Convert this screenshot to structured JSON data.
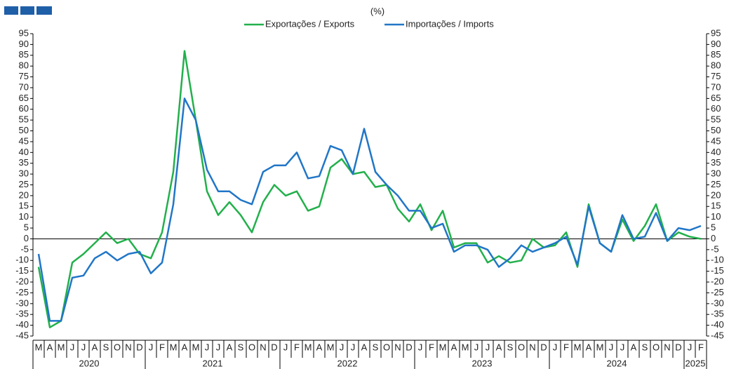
{
  "chart_data": {
    "type": "line",
    "subtitle": "(%)",
    "categories": [
      "M",
      "A",
      "M",
      "J",
      "J",
      "A",
      "S",
      "O",
      "N",
      "D",
      "J",
      "F",
      "M",
      "A",
      "M",
      "J",
      "J",
      "A",
      "S",
      "O",
      "N",
      "D",
      "J",
      "F",
      "M",
      "A",
      "M",
      "J",
      "J",
      "A",
      "S",
      "O",
      "N",
      "D",
      "J",
      "F",
      "M",
      "A",
      "M",
      "J",
      "J",
      "A",
      "S",
      "O",
      "N",
      "D",
      "J",
      "F",
      "M",
      "A",
      "M",
      "J",
      "J",
      "A",
      "S",
      "O",
      "N",
      "D",
      "J",
      "F"
    ],
    "year_labels": [
      "2020",
      "2021",
      "2022",
      "2023",
      "2024",
      "2025"
    ],
    "series": [
      {
        "name": "Exportações / Exports",
        "color": "#22b04b",
        "values": [
          -13,
          -41,
          -38,
          -11,
          -7,
          -2,
          3,
          -2,
          0,
          -7,
          -9,
          3,
          31,
          87,
          55,
          22,
          11,
          17,
          11,
          3,
          17,
          25,
          20,
          22,
          13,
          15,
          33,
          37,
          30,
          31,
          24,
          25,
          14,
          8,
          16,
          4,
          13,
          -4,
          -2,
          -2,
          -11,
          -8,
          -11,
          -10,
          0,
          -4,
          -3,
          3,
          -13,
          16,
          -2,
          -6,
          9,
          -1,
          6,
          16,
          -1,
          3,
          1,
          0
        ]
      },
      {
        "name": "Importações / Imports",
        "color": "#2176c7",
        "values": [
          -7,
          -38,
          -38,
          -18,
          -17,
          -9,
          -6,
          -10,
          -7,
          -6,
          -16,
          -11,
          16,
          65,
          55,
          32,
          22,
          22,
          18,
          16,
          31,
          34,
          34,
          40,
          28,
          29,
          43,
          41,
          30,
          51,
          31,
          25,
          20,
          13,
          13,
          5,
          7,
          -6,
          -3,
          -3,
          -5,
          -13,
          -9,
          -3,
          -6,
          -4,
          -2,
          1,
          -12,
          15,
          -2,
          -6,
          11,
          0,
          1,
          12,
          -1,
          5,
          4,
          6
        ]
      }
    ],
    "ylim": [
      -45,
      95
    ],
    "yticks": [
      -45,
      -40,
      -35,
      -30,
      -25,
      -20,
      -15,
      -10,
      -5,
      0,
      5,
      10,
      15,
      20,
      25,
      30,
      35,
      40,
      45,
      50,
      55,
      60,
      65,
      70,
      75,
      80,
      85,
      90,
      95
    ]
  }
}
